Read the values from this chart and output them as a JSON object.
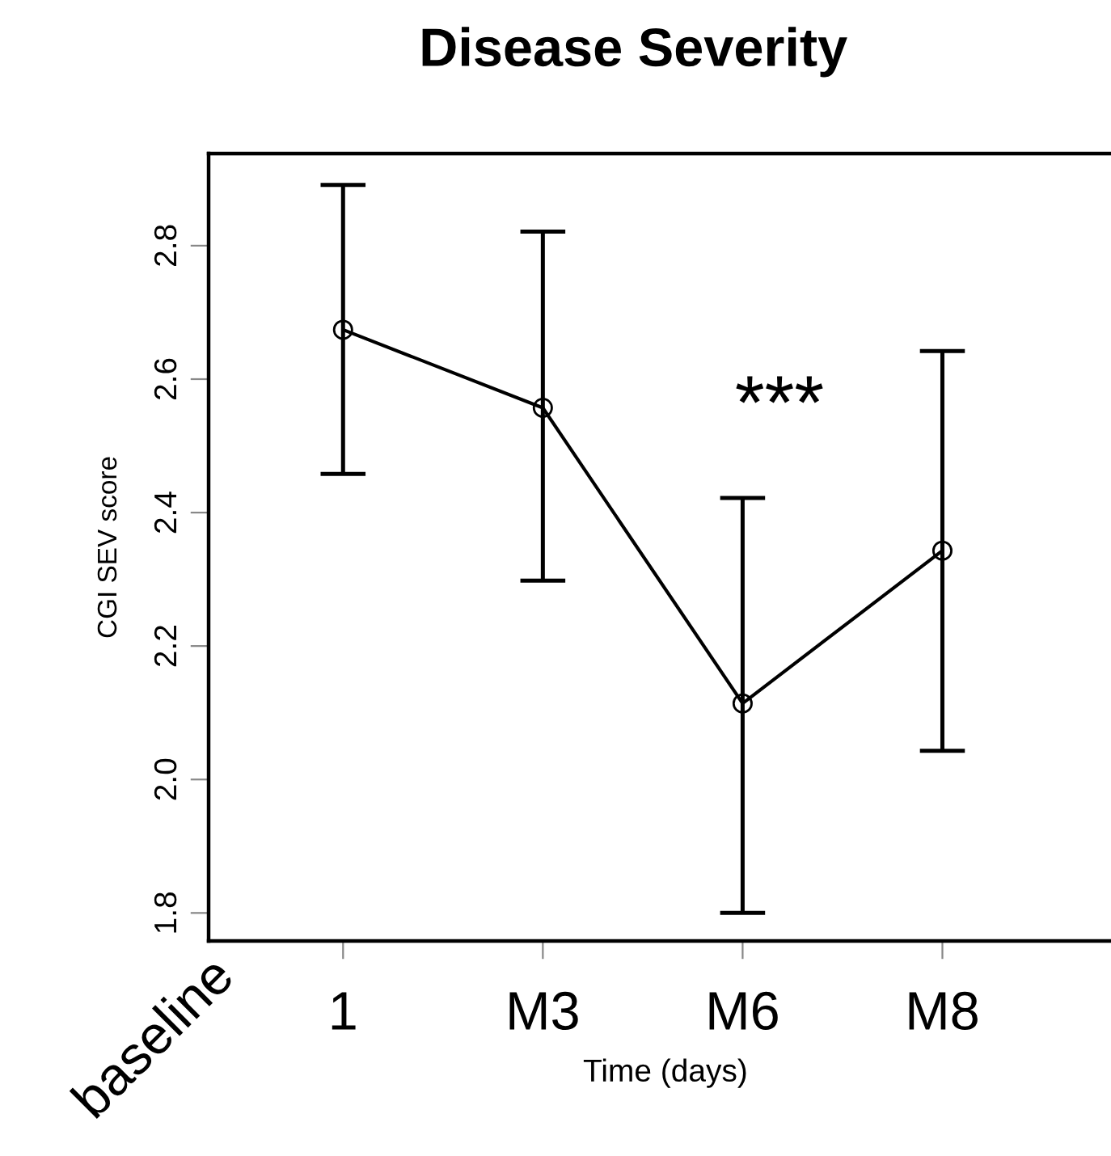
{
  "chart_data": {
    "type": "line",
    "title": "Disease Severity",
    "xlabel": "Time (days)",
    "ylabel": "CGI SEV score",
    "categories": [
      "1",
      "M3",
      "M6",
      "M8"
    ],
    "series": [
      {
        "color": "#000000",
        "values": [
          2.674,
          2.557,
          2.114,
          2.343
        ],
        "errors": [
          [
            2.458,
            2.891
          ],
          [
            2.298,
            2.821
          ],
          [
            1.8,
            2.422
          ],
          [
            2.043,
            2.642
          ]
        ]
      }
    ],
    "ylim": [
      1.758,
      2.938
    ],
    "yticks": [
      1.8,
      {
        "value": 2.0,
        "label": "2.0"
      },
      2.2,
      2.4,
      2.6,
      2.8
    ],
    "annotations": [
      "***",
      "baseline"
    ],
    "marker": "circle",
    "line_style": "solid",
    "grid": false,
    "legend": false
  }
}
